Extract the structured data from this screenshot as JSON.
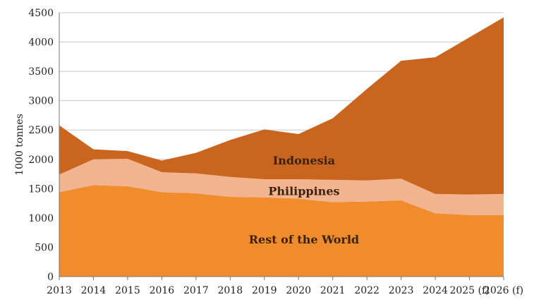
{
  "chart_data": {
    "type": "area",
    "stacked": true,
    "ylabel": "1000 tonnes",
    "ylim": [
      0,
      4500
    ],
    "yticks": [
      0,
      500,
      1000,
      1500,
      2000,
      2500,
      3000,
      3500,
      4000,
      4500
    ],
    "grid": true,
    "categories": [
      "2013",
      "2014",
      "2015",
      "2016",
      "2017",
      "2018",
      "2019",
      "2020",
      "2021",
      "2022",
      "2023",
      "2024",
      "2025 (f)",
      "2026 (f)"
    ],
    "series": [
      {
        "name": "Rest of the World",
        "color": "#f08c2c",
        "values": [
          1440,
          1560,
          1540,
          1440,
          1420,
          1360,
          1350,
          1330,
          1270,
          1280,
          1300,
          1080,
          1050,
          1050
        ]
      },
      {
        "name": "Philippines",
        "color": "#f2b48e",
        "values": [
          300,
          440,
          470,
          340,
          340,
          340,
          310,
          330,
          380,
          360,
          370,
          330,
          350,
          360
        ]
      },
      {
        "name": "Indonesia",
        "color": "#c9651f",
        "values": [
          840,
          170,
          130,
          200,
          350,
          630,
          850,
          770,
          1050,
          1560,
          2010,
          2330,
          2680,
          3010
        ]
      }
    ]
  }
}
